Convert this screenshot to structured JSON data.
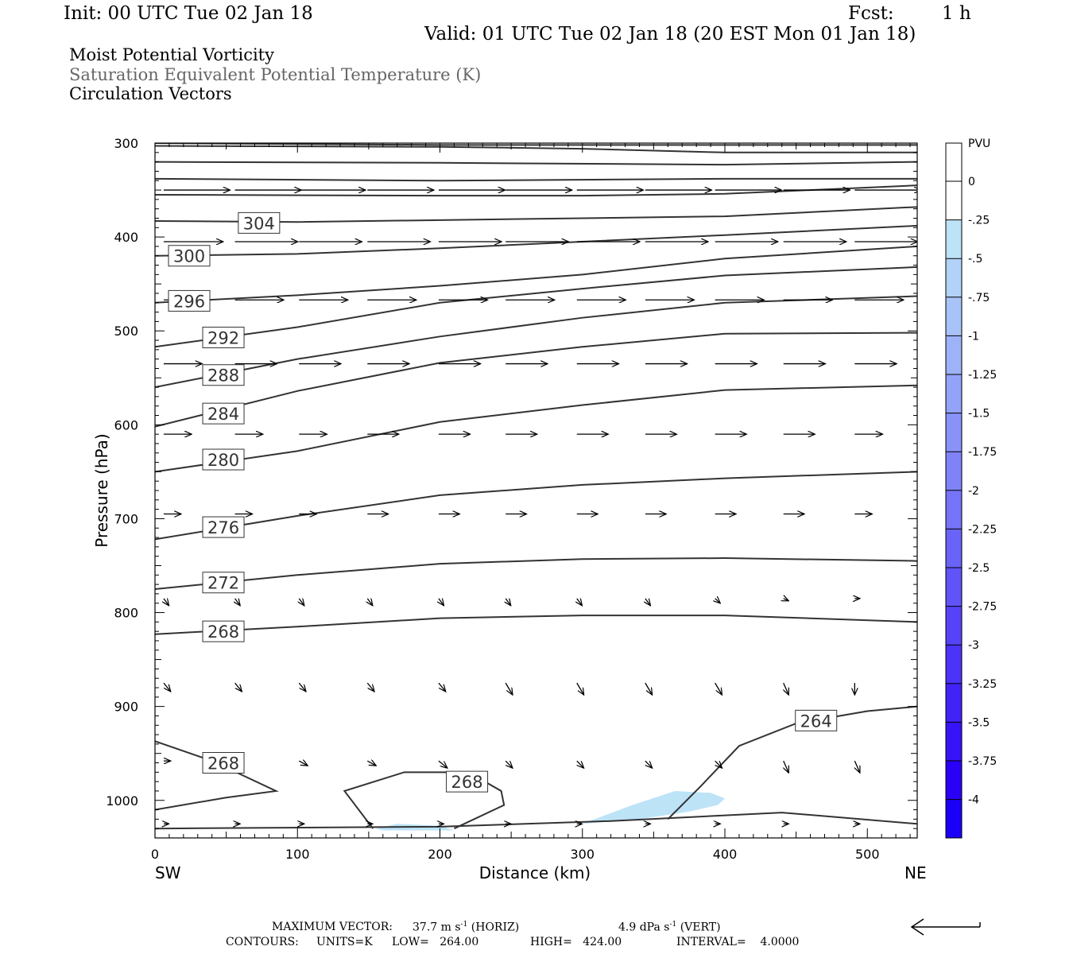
{
  "header": {
    "init": "Init: 00 UTC Tue 02 Jan 18",
    "fcst_label": "Fcst:",
    "fcst_value": "1 h",
    "valid": "Valid: 01 UTC Tue 02 Jan 18 (20 EST Mon 01 Jan 18)"
  },
  "fields": {
    "line1": "Moist Potential Vorticity",
    "line2": "Saturation Equivalent Potential Temperature (K)",
    "line3": "Circulation Vectors"
  },
  "colors": {
    "theta_contour": "#333333",
    "pv_fill": "#bde3f7",
    "axis": "#000000"
  },
  "chart_data": {
    "type": "cross-section",
    "xlabel": "Distance (km)",
    "ylabel": "Pressure (hPa)",
    "xlim": [
      0,
      535
    ],
    "ylim": [
      1040,
      300
    ],
    "xticks": [
      0,
      100,
      200,
      300,
      400,
      500
    ],
    "yticks": [
      300,
      400,
      500,
      600,
      700,
      800,
      900,
      1000
    ],
    "endpoints": {
      "left": "SW",
      "right": "NE"
    },
    "contours": [
      {
        "label": "304",
        "label_at": [
          73,
          385
        ],
        "points": [
          [
            0,
            383
          ],
          [
            100,
            384
          ],
          [
            200,
            382
          ],
          [
            300,
            380
          ],
          [
            400,
            378
          ],
          [
            535,
            368
          ]
        ]
      },
      {
        "label": "300",
        "label_at": [
          24,
          420
        ],
        "points": [
          [
            0,
            420
          ],
          [
            100,
            418
          ],
          [
            200,
            412
          ],
          [
            300,
            405
          ],
          [
            400,
            398
          ],
          [
            535,
            388
          ]
        ]
      },
      {
        "label": "296",
        "label_at": [
          24,
          468
        ],
        "points": [
          [
            0,
            470
          ],
          [
            100,
            462
          ],
          [
            200,
            452
          ],
          [
            300,
            440
          ],
          [
            400,
            423
          ],
          [
            535,
            410
          ]
        ]
      },
      {
        "label": "292",
        "label_at": [
          48,
          507
        ],
        "points": [
          [
            0,
            517
          ],
          [
            100,
            496
          ],
          [
            200,
            470
          ],
          [
            300,
            455
          ],
          [
            400,
            441
          ],
          [
            535,
            432
          ]
        ]
      },
      {
        "label": "288",
        "label_at": [
          48,
          547
        ],
        "points": [
          [
            0,
            560
          ],
          [
            100,
            530
          ],
          [
            200,
            506
          ],
          [
            300,
            486
          ],
          [
            400,
            470
          ],
          [
            535,
            463
          ]
        ]
      },
      {
        "label": "284",
        "label_at": [
          48,
          588
        ],
        "points": [
          [
            0,
            602
          ],
          [
            100,
            564
          ],
          [
            200,
            534
          ],
          [
            300,
            517
          ],
          [
            400,
            503
          ],
          [
            535,
            502
          ]
        ]
      },
      {
        "label": "280",
        "label_at": [
          48,
          637
        ],
        "points": [
          [
            0,
            650
          ],
          [
            100,
            628
          ],
          [
            200,
            597
          ],
          [
            300,
            579
          ],
          [
            400,
            563
          ],
          [
            535,
            558
          ]
        ]
      },
      {
        "label": "276",
        "label_at": [
          48,
          709
        ],
        "points": [
          [
            0,
            722
          ],
          [
            100,
            697
          ],
          [
            200,
            675
          ],
          [
            300,
            664
          ],
          [
            400,
            657
          ],
          [
            535,
            650
          ]
        ]
      },
      {
        "label": "272",
        "label_at": [
          48,
          768
        ],
        "points": [
          [
            0,
            775
          ],
          [
            100,
            760
          ],
          [
            200,
            748
          ],
          [
            300,
            743
          ],
          [
            400,
            742
          ],
          [
            535,
            745
          ]
        ]
      },
      {
        "label": "268",
        "label_at": [
          48,
          820
        ],
        "points": [
          [
            0,
            823
          ],
          [
            100,
            815
          ],
          [
            200,
            806
          ],
          [
            300,
            803
          ],
          [
            400,
            803
          ],
          [
            535,
            810
          ]
        ]
      },
      {
        "label": "268",
        "label_at": [
          48,
          960
        ],
        "points": [
          [
            0,
            937
          ],
          [
            40,
            958
          ],
          [
            85,
            990
          ],
          [
            50,
            997
          ],
          [
            0,
            1010
          ]
        ]
      },
      {
        "label": "268",
        "label_at": [
          219,
          980
        ],
        "points": [
          [
            153,
            1030
          ],
          [
            133,
            990
          ],
          [
            175,
            970
          ],
          [
            220,
            970
          ],
          [
            243,
            990
          ],
          [
            245,
            1005
          ],
          [
            210,
            1030
          ]
        ]
      },
      {
        "label": "264",
        "label_at": [
          464,
          915
        ],
        "points": [
          [
            360,
            1020
          ],
          [
            383,
            985
          ],
          [
            410,
            942
          ],
          [
            450,
            918
          ],
          [
            500,
            905
          ],
          [
            535,
            900
          ]
        ]
      },
      {
        "label": "",
        "label_at": null,
        "points": [
          [
            0,
            1030
          ],
          [
            200,
            1028
          ],
          [
            320,
            1022
          ],
          [
            440,
            1013
          ],
          [
            535,
            1025
          ]
        ]
      },
      {
        "label": "",
        "label_at": null,
        "points": [
          [
            0,
            320
          ],
          [
            200,
            321
          ],
          [
            400,
            323
          ],
          [
            535,
            320
          ]
        ]
      },
      {
        "label": "",
        "label_at": null,
        "points": [
          [
            0,
            338
          ],
          [
            200,
            340
          ],
          [
            400,
            338
          ],
          [
            535,
            338
          ]
        ]
      },
      {
        "label": "",
        "label_at": null,
        "points": [
          [
            0,
            355
          ],
          [
            200,
            356
          ],
          [
            300,
            356
          ],
          [
            400,
            354
          ],
          [
            535,
            345
          ]
        ]
      },
      {
        "label": "",
        "label_at": null,
        "points": [
          [
            0,
            303
          ],
          [
            200,
            304
          ],
          [
            300,
            306
          ],
          [
            400,
            310
          ],
          [
            535,
            310
          ]
        ]
      },
      {
        "label": "",
        "label_at": null,
        "points": [
          [
            0,
            300
          ],
          [
            200,
            302
          ],
          [
            535,
            302
          ]
        ]
      }
    ],
    "pv_regions": [
      {
        "level": "-0.25 to -0.5",
        "points": [
          [
            300,
            1025
          ],
          [
            335,
            1005
          ],
          [
            365,
            990
          ],
          [
            390,
            992
          ],
          [
            400,
            998
          ],
          [
            395,
            1005
          ],
          [
            375,
            1012
          ],
          [
            340,
            1020
          ]
        ]
      },
      {
        "level": "-0.25 to -0.5",
        "points": [
          [
            155,
            1030
          ],
          [
            170,
            1025
          ],
          [
            200,
            1027
          ],
          [
            210,
            1032
          ],
          [
            160,
            1032
          ]
        ]
      }
    ],
    "vector_rows": [
      {
        "p": 350,
        "u": [
          38,
          38,
          38,
          38,
          38,
          38,
          38,
          38,
          38,
          38,
          38
        ],
        "w": [
          0,
          0,
          0,
          0,
          0,
          0,
          0,
          0,
          0,
          0,
          0
        ]
      },
      {
        "p": 405,
        "u": [
          34,
          36,
          36,
          36,
          36,
          36,
          36,
          36,
          36,
          36,
          36
        ],
        "w": [
          0,
          0,
          0,
          0,
          0,
          0,
          0,
          0,
          0,
          0,
          0
        ]
      },
      {
        "p": 467,
        "u": [
          26,
          28,
          28,
          28,
          28,
          28,
          28,
          28,
          28,
          28,
          28
        ],
        "w": [
          0,
          0,
          0,
          0,
          0,
          0,
          0,
          0,
          0,
          0,
          0
        ]
      },
      {
        "p": 535,
        "u": [
          22,
          24,
          24,
          24,
          24,
          24,
          24,
          24,
          24,
          24,
          24
        ],
        "w": [
          0,
          0,
          0,
          0,
          0,
          0,
          0,
          0,
          0,
          0,
          0
        ]
      },
      {
        "p": 610,
        "u": [
          16,
          16,
          16,
          18,
          18,
          18,
          18,
          18,
          18,
          18,
          16
        ],
        "w": [
          0,
          0,
          0,
          0,
          0,
          0,
          0,
          0,
          0,
          0,
          0
        ]
      },
      {
        "p": 695,
        "u": [
          10,
          10,
          10,
          12,
          12,
          12,
          12,
          12,
          12,
          12,
          10
        ],
        "w": [
          0,
          0,
          0,
          0,
          0,
          0,
          0,
          0,
          0,
          0,
          0
        ]
      },
      {
        "p": 785,
        "u": [
          3,
          3,
          3,
          3,
          3,
          3,
          3,
          3,
          3,
          3,
          3
        ],
        "w": [
          1.5,
          1.5,
          1.5,
          1.5,
          1.5,
          1.5,
          1.5,
          1.5,
          1,
          0.5,
          0
        ]
      },
      {
        "p": 875,
        "u": [
          4,
          4,
          4,
          4,
          4,
          4,
          4,
          4,
          4,
          3,
          0
        ],
        "w": [
          1.8,
          1.8,
          1.8,
          1.8,
          1.8,
          2.5,
          2.5,
          2.5,
          2.5,
          2.5,
          2.5
        ]
      },
      {
        "p": 958,
        "u": [
          4,
          5,
          5,
          5,
          5,
          4,
          4,
          4,
          4,
          3,
          3
        ],
        "w": [
          0,
          1,
          1,
          1,
          1.5,
          1.5,
          1.5,
          1.5,
          1.5,
          2.5,
          2.5
        ]
      },
      {
        "p": 1025,
        "u": [
          3,
          3,
          3,
          3,
          3,
          3,
          3,
          3,
          3,
          3,
          3
        ],
        "w": [
          0,
          0,
          0,
          0,
          0,
          0,
          0,
          0,
          0,
          0,
          0
        ]
      }
    ],
    "vector_x": [
      5,
      55,
      100,
      148,
      198,
      245,
      295,
      343,
      392,
      440,
      490
    ],
    "colorbar": {
      "unit": "PVU",
      "labels": [
        "0",
        "-.25",
        "-.5",
        "-.75",
        "-1",
        "-1.25",
        "-1.5",
        "-1.75",
        "-2",
        "-2.25",
        "-2.5",
        "-2.75",
        "-3",
        "-3.25",
        "-3.5",
        "-3.75",
        "-4"
      ],
      "colors": [
        "#ffffff",
        "#ffffff",
        "#bde3f7",
        "#b2d3f7",
        "#a8c3f7",
        "#9eb3f7",
        "#93a3f7",
        "#8993f7",
        "#7f83f7",
        "#7573f7",
        "#6a63f7",
        "#6053f7",
        "#5643f7",
        "#4b33f7",
        "#4123f7",
        "#3713f7",
        "#2b00f7",
        "#1a00f7"
      ]
    }
  },
  "footer": {
    "maxvec_label": "MAXIMUM VECTOR:",
    "horiz_value": "37.7 m s",
    "horiz_exp": "-1",
    "horiz_tag": "(HORIZ)",
    "vert_value": "4.9 dPa s",
    "vert_exp": "-1",
    "vert_tag": "(VERT)",
    "contours_label": "CONTOURS:",
    "units": "UNITS=K",
    "low": "LOW=   264.00",
    "high": "HIGH=   424.00",
    "interval": "INTERVAL=    4.0000"
  }
}
